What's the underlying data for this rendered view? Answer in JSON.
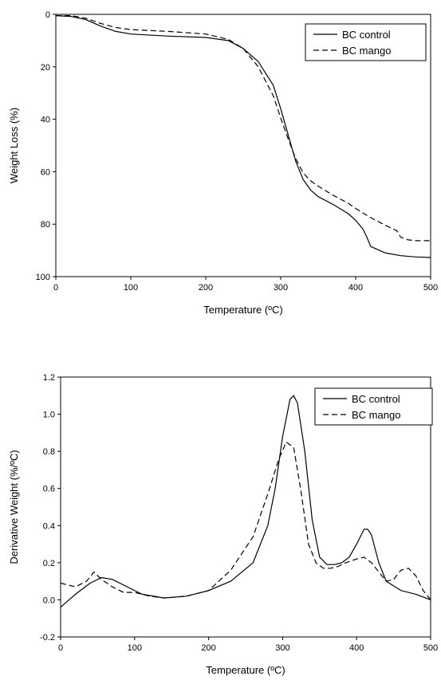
{
  "chart_data": [
    {
      "type": "line",
      "title": "",
      "xlabel": "Temperature (ºC)",
      "ylabel": "Weight Loss (%)",
      "xlim": [
        0,
        500
      ],
      "ylim": [
        0,
        100
      ],
      "y_inverted": true,
      "xticks": [
        "0",
        "100",
        "200",
        "300",
        "400",
        "500"
      ],
      "yticks": [
        "0",
        "20",
        "40",
        "60",
        "80",
        "100"
      ],
      "grid": false,
      "legend_position": "top-right",
      "series": [
        {
          "name": "BC control",
          "line_style": "solid",
          "color": "#000000",
          "x": [
            0,
            20,
            40,
            60,
            80,
            100,
            150,
            200,
            230,
            250,
            270,
            290,
            300,
            310,
            320,
            330,
            340,
            350,
            370,
            390,
            400,
            410,
            415,
            420,
            440,
            460,
            480,
            500
          ],
          "y": [
            0.5,
            0.8,
            2,
            4.5,
            6.5,
            7.5,
            8.3,
            8.8,
            10,
            13,
            18,
            27,
            36,
            46,
            56,
            63,
            67,
            69.5,
            72.5,
            76,
            78.5,
            82,
            85,
            88.5,
            91,
            92,
            92.5,
            92.7
          ]
        },
        {
          "name": "BC mango",
          "line_style": "dashed",
          "color": "#000000",
          "x": [
            0,
            20,
            40,
            60,
            80,
            100,
            150,
            200,
            230,
            250,
            270,
            290,
            300,
            310,
            320,
            330,
            340,
            350,
            370,
            390,
            400,
            420,
            440,
            455,
            460,
            470,
            480,
            500
          ],
          "y": [
            0.5,
            0.5,
            1.5,
            3.5,
            5,
            5.8,
            6.5,
            7.5,
            9.5,
            13,
            20,
            31,
            39.5,
            47.5,
            55,
            60.5,
            63.5,
            65.5,
            69,
            72,
            74,
            77.5,
            80.5,
            82.5,
            85,
            86,
            86.3,
            86.3
          ]
        }
      ]
    },
    {
      "type": "line",
      "title": "",
      "xlabel": "Temperature (ºC)",
      "ylabel": "Derivative Weight (%/ºC)",
      "xlim": [
        0,
        500
      ],
      "ylim": [
        -0.2,
        1.2
      ],
      "xticks": [
        "0",
        "100",
        "200",
        "300",
        "400",
        "500"
      ],
      "yticks": [
        "-0.2",
        "0.0",
        "0.2",
        "0.4",
        "0.6",
        "0.8",
        "1.0",
        "1.2"
      ],
      "grid": false,
      "legend_position": "top-right",
      "series": [
        {
          "name": "BC control",
          "line_style": "solid",
          "color": "#000000",
          "x": [
            0,
            20,
            40,
            55,
            70,
            90,
            110,
            140,
            170,
            200,
            230,
            260,
            280,
            290,
            300,
            310,
            315,
            320,
            330,
            340,
            350,
            360,
            370,
            380,
            390,
            400,
            410,
            415,
            420,
            430,
            440,
            460,
            480,
            500
          ],
          "y": [
            -0.04,
            0.03,
            0.09,
            0.12,
            0.11,
            0.07,
            0.03,
            0.01,
            0.02,
            0.05,
            0.1,
            0.2,
            0.4,
            0.6,
            0.88,
            1.08,
            1.1,
            1.06,
            0.8,
            0.43,
            0.23,
            0.19,
            0.19,
            0.2,
            0.23,
            0.3,
            0.38,
            0.38,
            0.35,
            0.2,
            0.1,
            0.05,
            0.03,
            0.0
          ]
        },
        {
          "name": "BC mango",
          "line_style": "dashed",
          "color": "#000000",
          "x": [
            0,
            20,
            35,
            45,
            55,
            70,
            85,
            100,
            120,
            140,
            170,
            200,
            230,
            260,
            280,
            295,
            305,
            315,
            325,
            335,
            345,
            355,
            365,
            375,
            385,
            400,
            410,
            420,
            430,
            440,
            450,
            460,
            470,
            480,
            490,
            500
          ],
          "y": [
            0.09,
            0.07,
            0.1,
            0.15,
            0.11,
            0.07,
            0.04,
            0.04,
            0.02,
            0.01,
            0.02,
            0.05,
            0.16,
            0.34,
            0.57,
            0.76,
            0.85,
            0.82,
            0.58,
            0.3,
            0.2,
            0.17,
            0.17,
            0.18,
            0.2,
            0.22,
            0.23,
            0.2,
            0.15,
            0.1,
            0.11,
            0.16,
            0.17,
            0.13,
            0.05,
            0.0
          ]
        }
      ]
    }
  ]
}
